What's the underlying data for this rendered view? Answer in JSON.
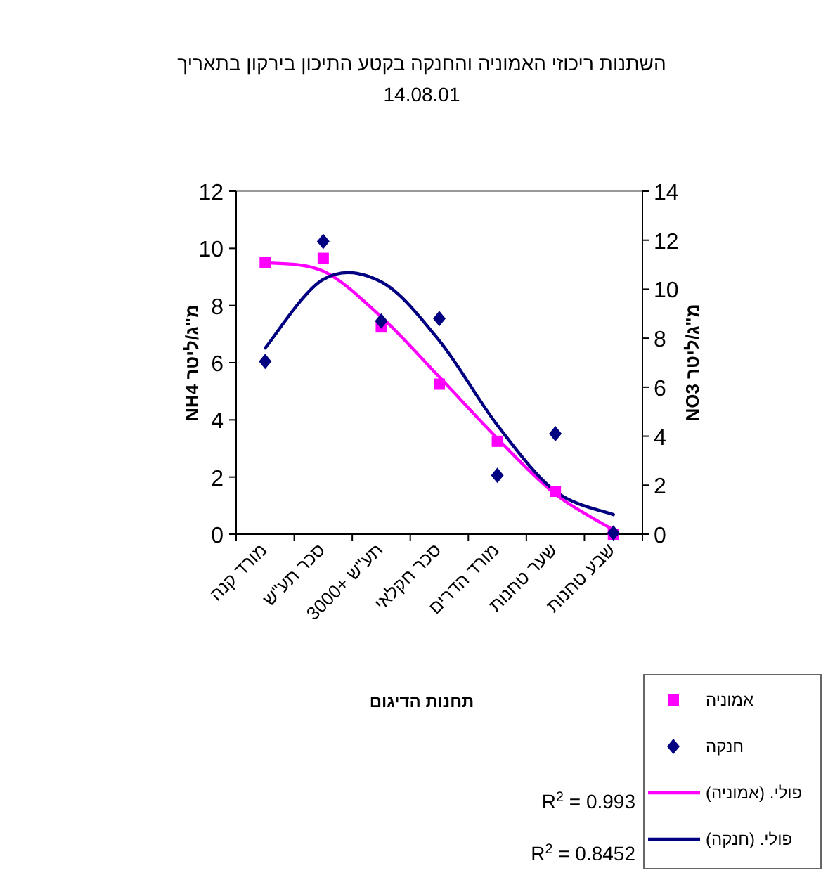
{
  "chart_data": {
    "type": "scatter",
    "title": "השתנות ריכוזי האמוניה והחנקה בקטע התיכון בירקון בתאריך",
    "subtitle": "14.08.01",
    "xlabel": "תחנות הדיגום",
    "ylabel": "מ\"ג/ליטר NH4",
    "y2label": "מ\"ג/ליטר NO3",
    "categories": [
      "מורד קנה",
      "סכר תע\"ש",
      "תע\"ש +3000",
      "סכר חקלאי",
      "מורד הדרים",
      "שער טחנות",
      "שבע טחנות"
    ],
    "series": [
      {
        "name": "אמוניה",
        "marker": "square",
        "color": "#ff00ff",
        "values": [
          9.5,
          9.65,
          7.25,
          5.25,
          3.25,
          1.5,
          0
        ]
      },
      {
        "name": "חנקה",
        "marker": "diamond",
        "color": "#000080",
        "axis": "y2",
        "values": [
          7.05,
          11.95,
          8.7,
          8.8,
          2.4,
          4.1,
          0.05
        ]
      },
      {
        "name": "פולי. (אמוניה)",
        "type": "line",
        "line_style": "solid",
        "color": "#ff00ff",
        "values": [
          9.5,
          9.2,
          7.6,
          5.5,
          3.35,
          1.4,
          0.15
        ]
      },
      {
        "name": "פולי. (חנקה)",
        "type": "line",
        "line_style": "solid",
        "color": "#000080",
        "axis": "y2",
        "values": [
          7.6,
          10.4,
          10.3,
          7.9,
          4.45,
          1.75,
          0.8
        ]
      }
    ],
    "ylim": [
      0,
      12
    ],
    "yticks": [
      0,
      2,
      4,
      6,
      8,
      10,
      12
    ],
    "y2lim": [
      0,
      14
    ],
    "y2ticks": [
      0,
      2,
      4,
      6,
      8,
      10,
      12,
      14
    ],
    "legend": "bottom right",
    "annotations": [
      "R$^{2}$ = 0.993",
      "R$^{2}$ = 0.8452"
    ]
  }
}
